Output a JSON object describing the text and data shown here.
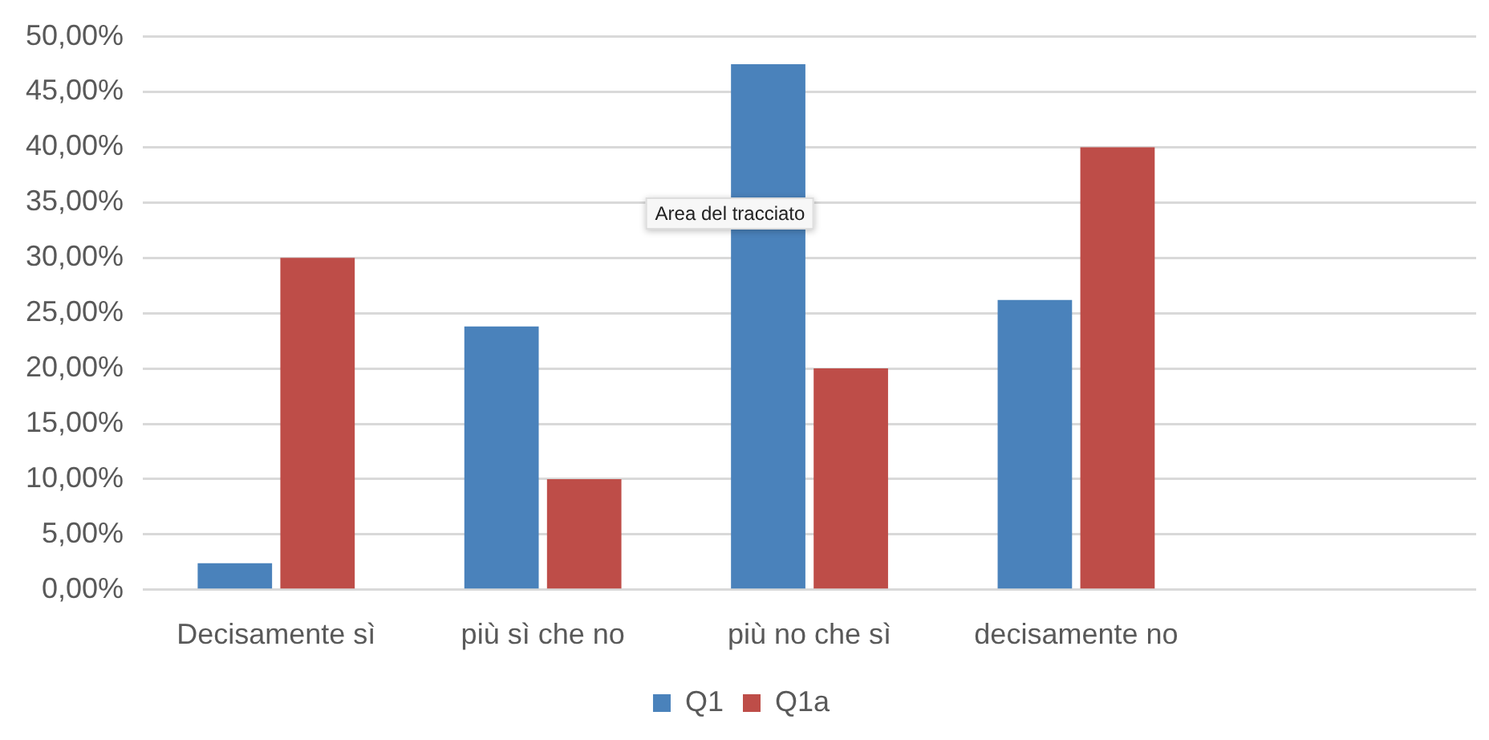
{
  "chart_data": {
    "type": "bar",
    "categories": [
      "Decisamente sì",
      "più sì che no",
      "più no che sì",
      "decisamente no",
      null
    ],
    "series": [
      {
        "name": "Q1",
        "color": "#4a82bb",
        "values": [
          2.4,
          23.8,
          47.5,
          26.2,
          null
        ]
      },
      {
        "name": "Q1a",
        "color": "#be4d48",
        "values": [
          30,
          10,
          20,
          40,
          null
        ]
      }
    ],
    "ylim": [
      0,
      50
    ],
    "yticks": [
      {
        "value": 0,
        "label": "0,00%"
      },
      {
        "value": 5,
        "label": "5,00%"
      },
      {
        "value": 10,
        "label": "10,00%"
      },
      {
        "value": 15,
        "label": "15,00%"
      },
      {
        "value": 20,
        "label": "20,00%"
      },
      {
        "value": 25,
        "label": "25,00%"
      },
      {
        "value": 30,
        "label": "30,00%"
      },
      {
        "value": 35,
        "label": "35,00%"
      },
      {
        "value": 40,
        "label": "40,00%"
      },
      {
        "value": 45,
        "label": "45,00%"
      },
      {
        "value": 50,
        "label": "50,00%"
      }
    ],
    "grid": "y",
    "legend": "bottom",
    "annotations": [
      "Area del tracciato"
    ]
  }
}
